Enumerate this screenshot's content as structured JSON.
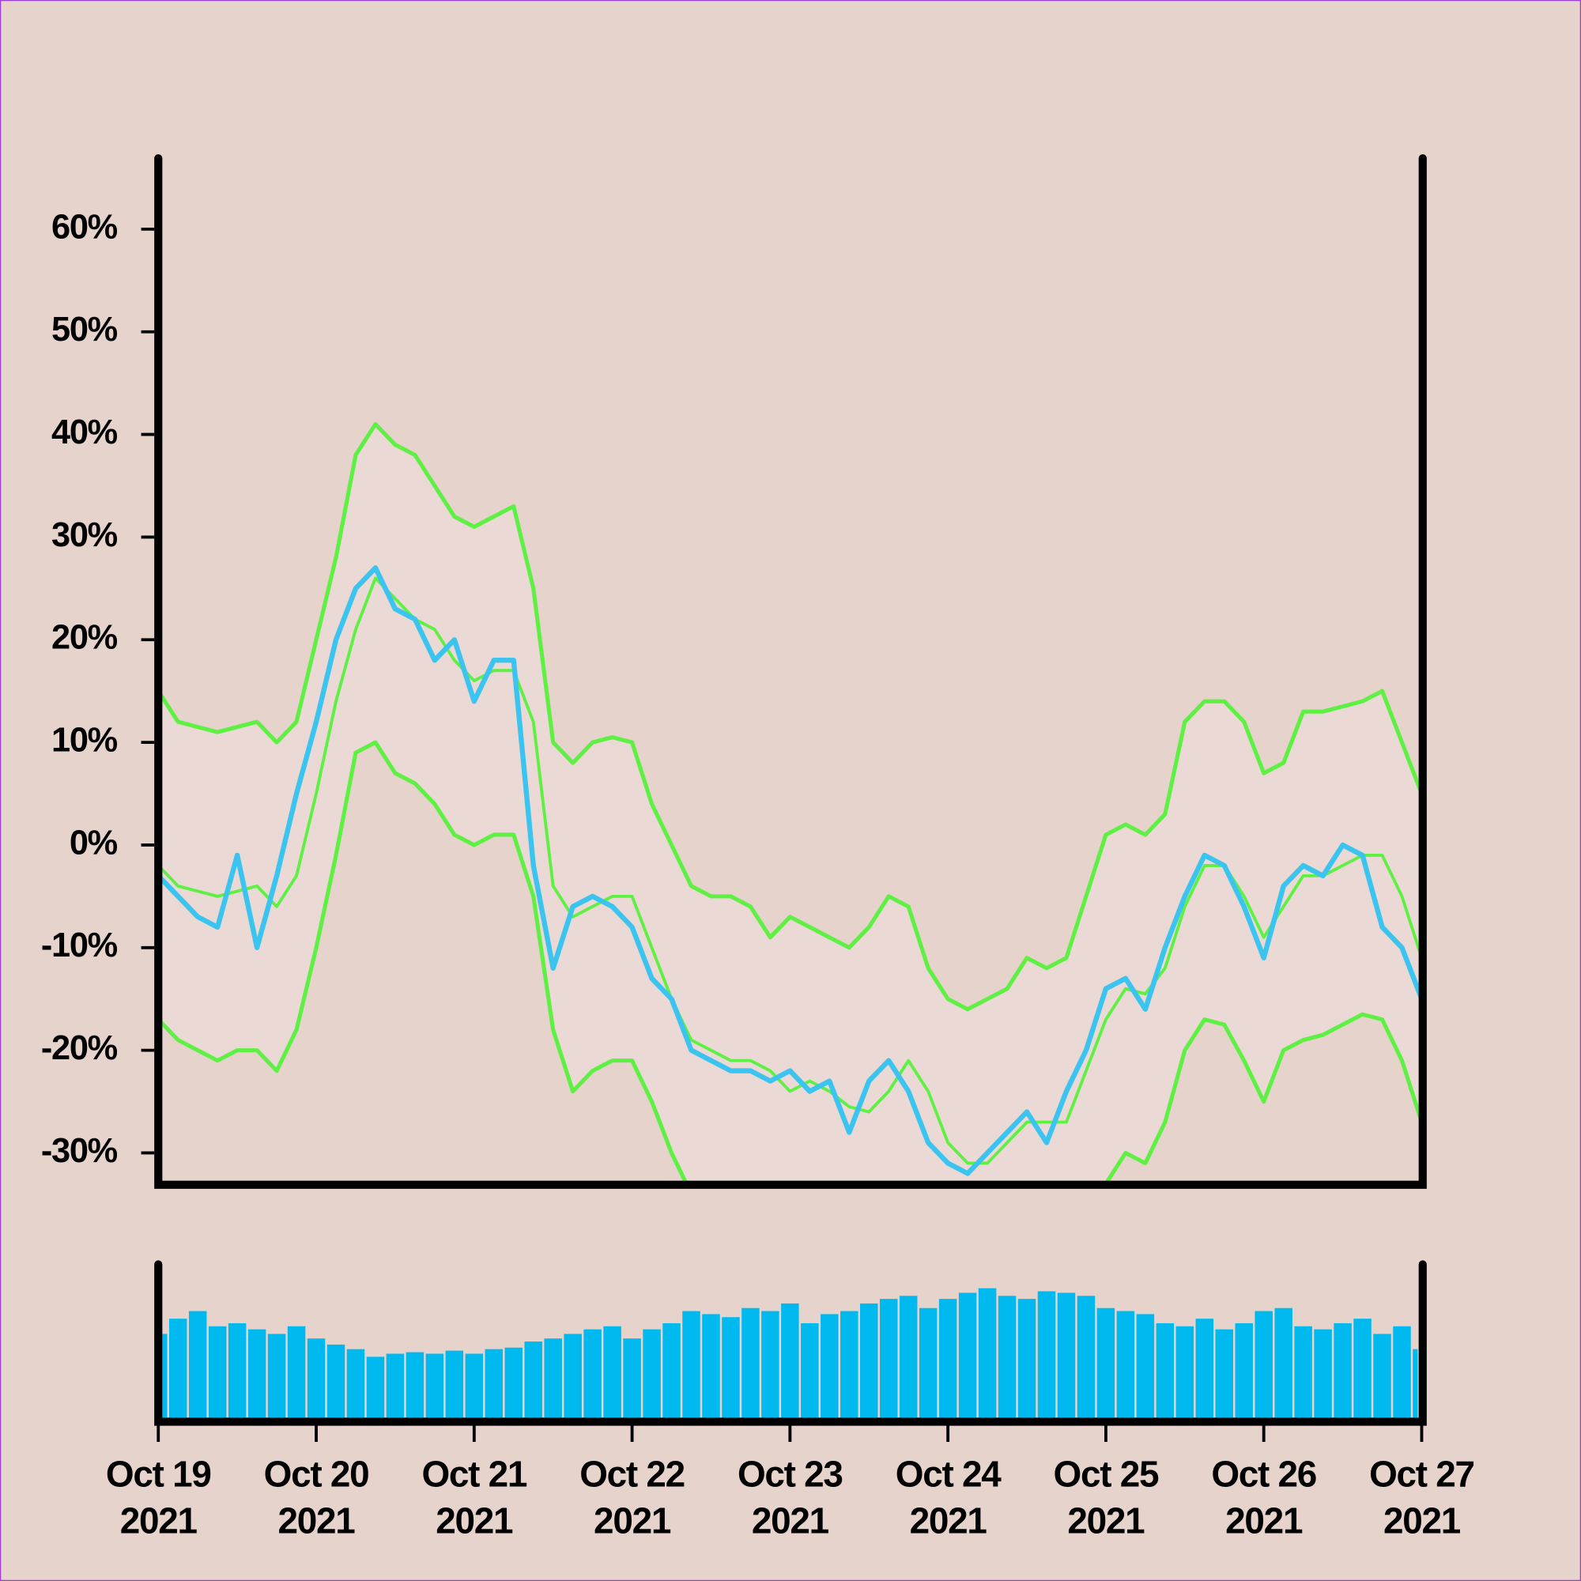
{
  "chart_data": [
    {
      "type": "line",
      "x": [
        "2021-10-19T00:00",
        "2021-10-19T03:00",
        "2021-10-19T06:00",
        "2021-10-19T09:00",
        "2021-10-19T12:00",
        "2021-10-19T15:00",
        "2021-10-19T18:00",
        "2021-10-19T21:00",
        "2021-10-20T00:00",
        "2021-10-20T03:00",
        "2021-10-20T06:00",
        "2021-10-20T09:00",
        "2021-10-20T12:00",
        "2021-10-20T15:00",
        "2021-10-20T18:00",
        "2021-10-20T21:00",
        "2021-10-21T00:00",
        "2021-10-21T03:00",
        "2021-10-21T06:00",
        "2021-10-21T09:00",
        "2021-10-21T12:00",
        "2021-10-21T15:00",
        "2021-10-21T18:00",
        "2021-10-21T21:00",
        "2021-10-22T00:00",
        "2021-10-22T03:00",
        "2021-10-22T06:00",
        "2021-10-22T09:00",
        "2021-10-22T12:00",
        "2021-10-22T15:00",
        "2021-10-22T18:00",
        "2021-10-22T21:00",
        "2021-10-23T00:00",
        "2021-10-23T03:00",
        "2021-10-23T06:00",
        "2021-10-23T09:00",
        "2021-10-23T12:00",
        "2021-10-23T15:00",
        "2021-10-23T18:00",
        "2021-10-23T21:00",
        "2021-10-24T00:00",
        "2021-10-24T03:00",
        "2021-10-24T06:00",
        "2021-10-24T09:00",
        "2021-10-24T12:00",
        "2021-10-24T15:00",
        "2021-10-24T18:00",
        "2021-10-24T21:00",
        "2021-10-25T00:00",
        "2021-10-25T03:00",
        "2021-10-25T06:00",
        "2021-10-25T09:00",
        "2021-10-25T12:00",
        "2021-10-25T15:00",
        "2021-10-25T18:00",
        "2021-10-25T21:00",
        "2021-10-26T00:00",
        "2021-10-26T03:00",
        "2021-10-26T06:00",
        "2021-10-26T09:00",
        "2021-10-26T12:00",
        "2021-10-26T15:00",
        "2021-10-26T18:00",
        "2021-10-26T21:00",
        "2021-10-27T00:00"
      ],
      "series": [
        {
          "color": "#3bc4ef",
          "width": 5,
          "values": [
            -3,
            -5,
            -7,
            -8,
            -1,
            -10,
            -3,
            5,
            12,
            20,
            25,
            27,
            23,
            22,
            18,
            20,
            14,
            18,
            18,
            -2,
            -12,
            -6,
            -5,
            -6,
            -8,
            -13,
            -15,
            -20,
            -21,
            -22,
            -22,
            -23,
            -22,
            -24,
            -23,
            -28,
            -23,
            -21,
            -24,
            -29,
            -31,
            -32,
            -30,
            -28,
            -26,
            -29,
            -24,
            -20,
            -14,
            -13,
            -16,
            -10,
            -5,
            -1,
            -2,
            -6,
            -11,
            -4,
            -2,
            -3,
            0,
            -1,
            -8,
            -10,
            -15
          ]
        },
        {
          "color": "#5ef042",
          "width": 4,
          "values": [
            15,
            12,
            11.5,
            11,
            11.5,
            12,
            10,
            12,
            20,
            28,
            38,
            41,
            39,
            38,
            35,
            32,
            31,
            32,
            33,
            25,
            10,
            8,
            10,
            10.5,
            10,
            4,
            0,
            -4,
            -5,
            -5,
            -6,
            -9,
            -7,
            -8,
            -9,
            -10,
            -8,
            -5,
            -6,
            -12,
            -15,
            -16,
            -15,
            -14,
            -11,
            -12,
            -11,
            -5,
            1,
            2,
            1,
            3,
            12,
            14,
            14,
            12,
            7,
            8,
            13,
            13,
            13.5,
            14,
            15,
            10,
            5
          ]
        },
        {
          "color": "#5ef042",
          "width": 3,
          "values": [
            -2,
            -4,
            -4.5,
            -5,
            -4.5,
            -4,
            -6,
            -3,
            5,
            14,
            21,
            26,
            24,
            22,
            21,
            18,
            16,
            17,
            17,
            12,
            -4,
            -7,
            -6,
            -5,
            -5,
            -10,
            -15,
            -19,
            -20,
            -21,
            -21,
            -22,
            -24,
            -23,
            -24,
            -25.5,
            -26,
            -24,
            -21,
            -24,
            -29,
            -31,
            -31,
            -29,
            -27,
            -27,
            -27,
            -22,
            -17,
            -14,
            -14.5,
            -12,
            -6,
            -2,
            -2,
            -5,
            -9,
            -6,
            -3,
            -3,
            -2,
            -1,
            -1,
            -5,
            -11
          ]
        },
        {
          "color": "#5ef042",
          "width": 4,
          "values": [
            -17,
            -19,
            -20,
            -21,
            -20,
            -20,
            -22,
            -18,
            -10,
            -1,
            9,
            10,
            7,
            6,
            4,
            1,
            0,
            1,
            1,
            -5,
            -18,
            -24,
            -22,
            -21,
            -21,
            -25,
            -30,
            -34,
            null,
            null,
            null,
            null,
            null,
            null,
            null,
            null,
            null,
            null,
            null,
            null,
            null,
            null,
            null,
            null,
            null,
            null,
            null,
            null,
            -33,
            -30,
            -31,
            -27,
            -20,
            -17,
            -17.5,
            -21,
            -25,
            -20,
            -19,
            -18.5,
            -17.5,
            -16.5,
            -17,
            -21,
            -27
          ]
        }
      ],
      "band_fill": "#ead9d4",
      "xlim": [
        "2021-10-19T00:00",
        "2021-10-27T00:00"
      ],
      "ylim": [
        -33.1,
        67.1
      ],
      "yticks": [
        {
          "value": -30,
          "label": "-30%"
        },
        {
          "value": -20,
          "label": "-20%"
        },
        {
          "value": -10,
          "label": "-10%"
        },
        {
          "value": 0,
          "label": "0%"
        },
        {
          "value": 10,
          "label": "10%"
        },
        {
          "value": 20,
          "label": "20%"
        },
        {
          "value": 30,
          "label": "30%"
        },
        {
          "value": 40,
          "label": "40%"
        },
        {
          "value": 50,
          "label": "50%"
        },
        {
          "value": 60,
          "label": "60%"
        }
      ]
    },
    {
      "type": "bar",
      "color": "#00b9ef",
      "xlim": [
        "2021-10-19T00:00",
        "2021-10-27T00:00"
      ],
      "ylim": [
        0,
        100
      ],
      "values": [
        55,
        65,
        70,
        60,
        62,
        58,
        55,
        60,
        52,
        48,
        45,
        40,
        42,
        43,
        42,
        44,
        42,
        45,
        46,
        50,
        52,
        55,
        58,
        60,
        52,
        58,
        62,
        70,
        68,
        66,
        72,
        70,
        75,
        62,
        68,
        70,
        75,
        78,
        80,
        72,
        78,
        82,
        85,
        80,
        78,
        83,
        82,
        80,
        72,
        70,
        68,
        62,
        60,
        65,
        58,
        62,
        70,
        72,
        60,
        58,
        62,
        65,
        55,
        60,
        45
      ],
      "xticks": [
        {
          "value": "2021-10-19T00:00",
          "label": [
            "Oct 19",
            "2021"
          ]
        },
        {
          "value": "2021-10-20T00:00",
          "label": [
            "Oct 20",
            "2021"
          ]
        },
        {
          "value": "2021-10-21T00:00",
          "label": [
            "Oct 21",
            "2021"
          ]
        },
        {
          "value": "2021-10-22T00:00",
          "label": [
            "Oct 22",
            "2021"
          ]
        },
        {
          "value": "2021-10-23T00:00",
          "label": [
            "Oct 23",
            "2021"
          ]
        },
        {
          "value": "2021-10-24T00:00",
          "label": [
            "Oct 24",
            "2021"
          ]
        },
        {
          "value": "2021-10-25T00:00",
          "label": [
            "Oct 25",
            "2021"
          ]
        },
        {
          "value": "2021-10-26T00:00",
          "label": [
            "Oct 26",
            "2021"
          ]
        },
        {
          "value": "2021-10-27T00:00",
          "label": [
            "Oct 27",
            "2021"
          ]
        }
      ]
    }
  ]
}
